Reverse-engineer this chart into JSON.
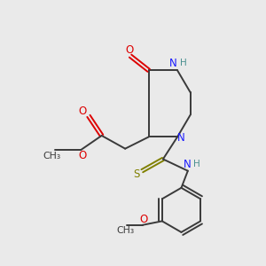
{
  "bg_color": "#eaeaea",
  "bond_color": "#3a3a3a",
  "N_color": "#1a1aff",
  "O_color": "#dd0000",
  "S_color": "#808000",
  "H_color": "#4a9090",
  "bond_lw": 1.4,
  "figsize": [
    3.0,
    3.0
  ],
  "dpi": 100,
  "xlim": [
    0,
    10
  ],
  "ylim": [
    0,
    10
  ]
}
